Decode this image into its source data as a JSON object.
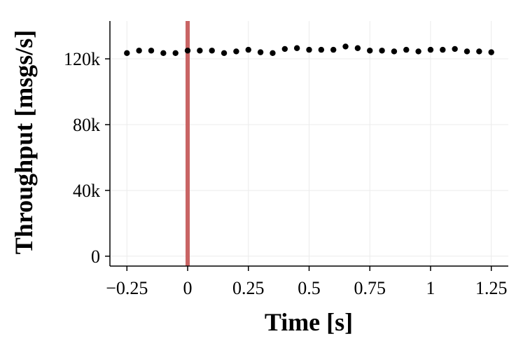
{
  "chart_data": {
    "type": "scatter",
    "title": "",
    "xlabel": "Time [s]",
    "ylabel": "Throughput [msgs/s]",
    "xlim": [
      -0.32,
      1.32
    ],
    "ylim": [
      -6000,
      143000
    ],
    "xticks": [
      -0.25,
      0,
      0.25,
      0.5,
      0.75,
      1,
      1.25
    ],
    "xtick_labels": [
      "−0.25",
      "0",
      "0.25",
      "0.5",
      "0.75",
      "1",
      "1.25"
    ],
    "yticks": [
      0,
      40000,
      80000,
      120000
    ],
    "ytick_labels": [
      "0",
      "40k",
      "80k",
      "120k"
    ],
    "grid": true,
    "marker_color": "#000000",
    "vline": {
      "x": 0,
      "color": "#c96464"
    },
    "series": [
      {
        "x": [
          -0.25,
          -0.2,
          -0.15,
          -0.1,
          -0.05,
          0,
          0.05,
          0.1,
          0.15,
          0.2,
          0.25,
          0.3,
          0.35,
          0.4,
          0.45,
          0.5,
          0.55,
          0.6,
          0.65,
          0.7,
          0.75,
          0.8,
          0.85,
          0.9,
          0.95,
          1.0,
          1.05,
          1.1,
          1.15,
          1.2,
          1.25
        ],
        "y": [
          123500,
          125000,
          125000,
          123500,
          123500,
          125000,
          125000,
          125000,
          123500,
          124500,
          125500,
          124000,
          123500,
          126000,
          126500,
          125500,
          125500,
          125500,
          127500,
          126500,
          125000,
          125000,
          124500,
          125500,
          124500,
          125500,
          125500,
          126000,
          124500,
          124500,
          124000
        ]
      }
    ]
  }
}
